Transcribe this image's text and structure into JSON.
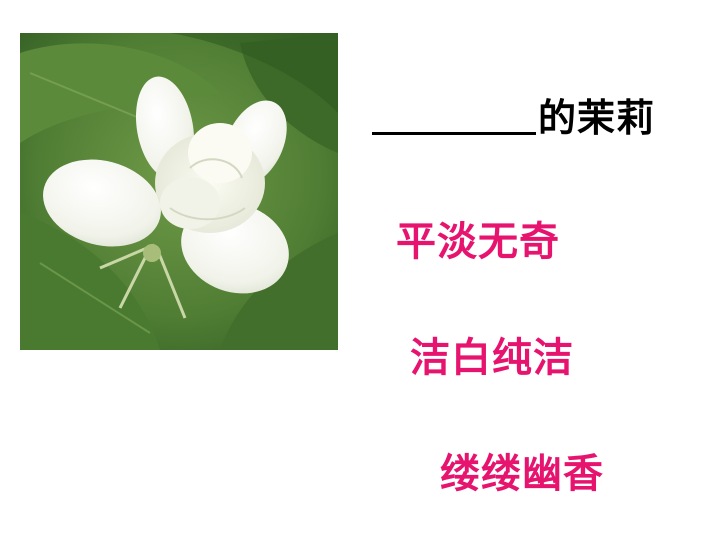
{
  "prompt": {
    "suffix": "的茉莉"
  },
  "phrases": [
    "平淡无奇",
    "洁白纯洁",
    "缕缕幽香"
  ],
  "colors": {
    "phrase": "#e6146e",
    "prompt": "#000000"
  }
}
